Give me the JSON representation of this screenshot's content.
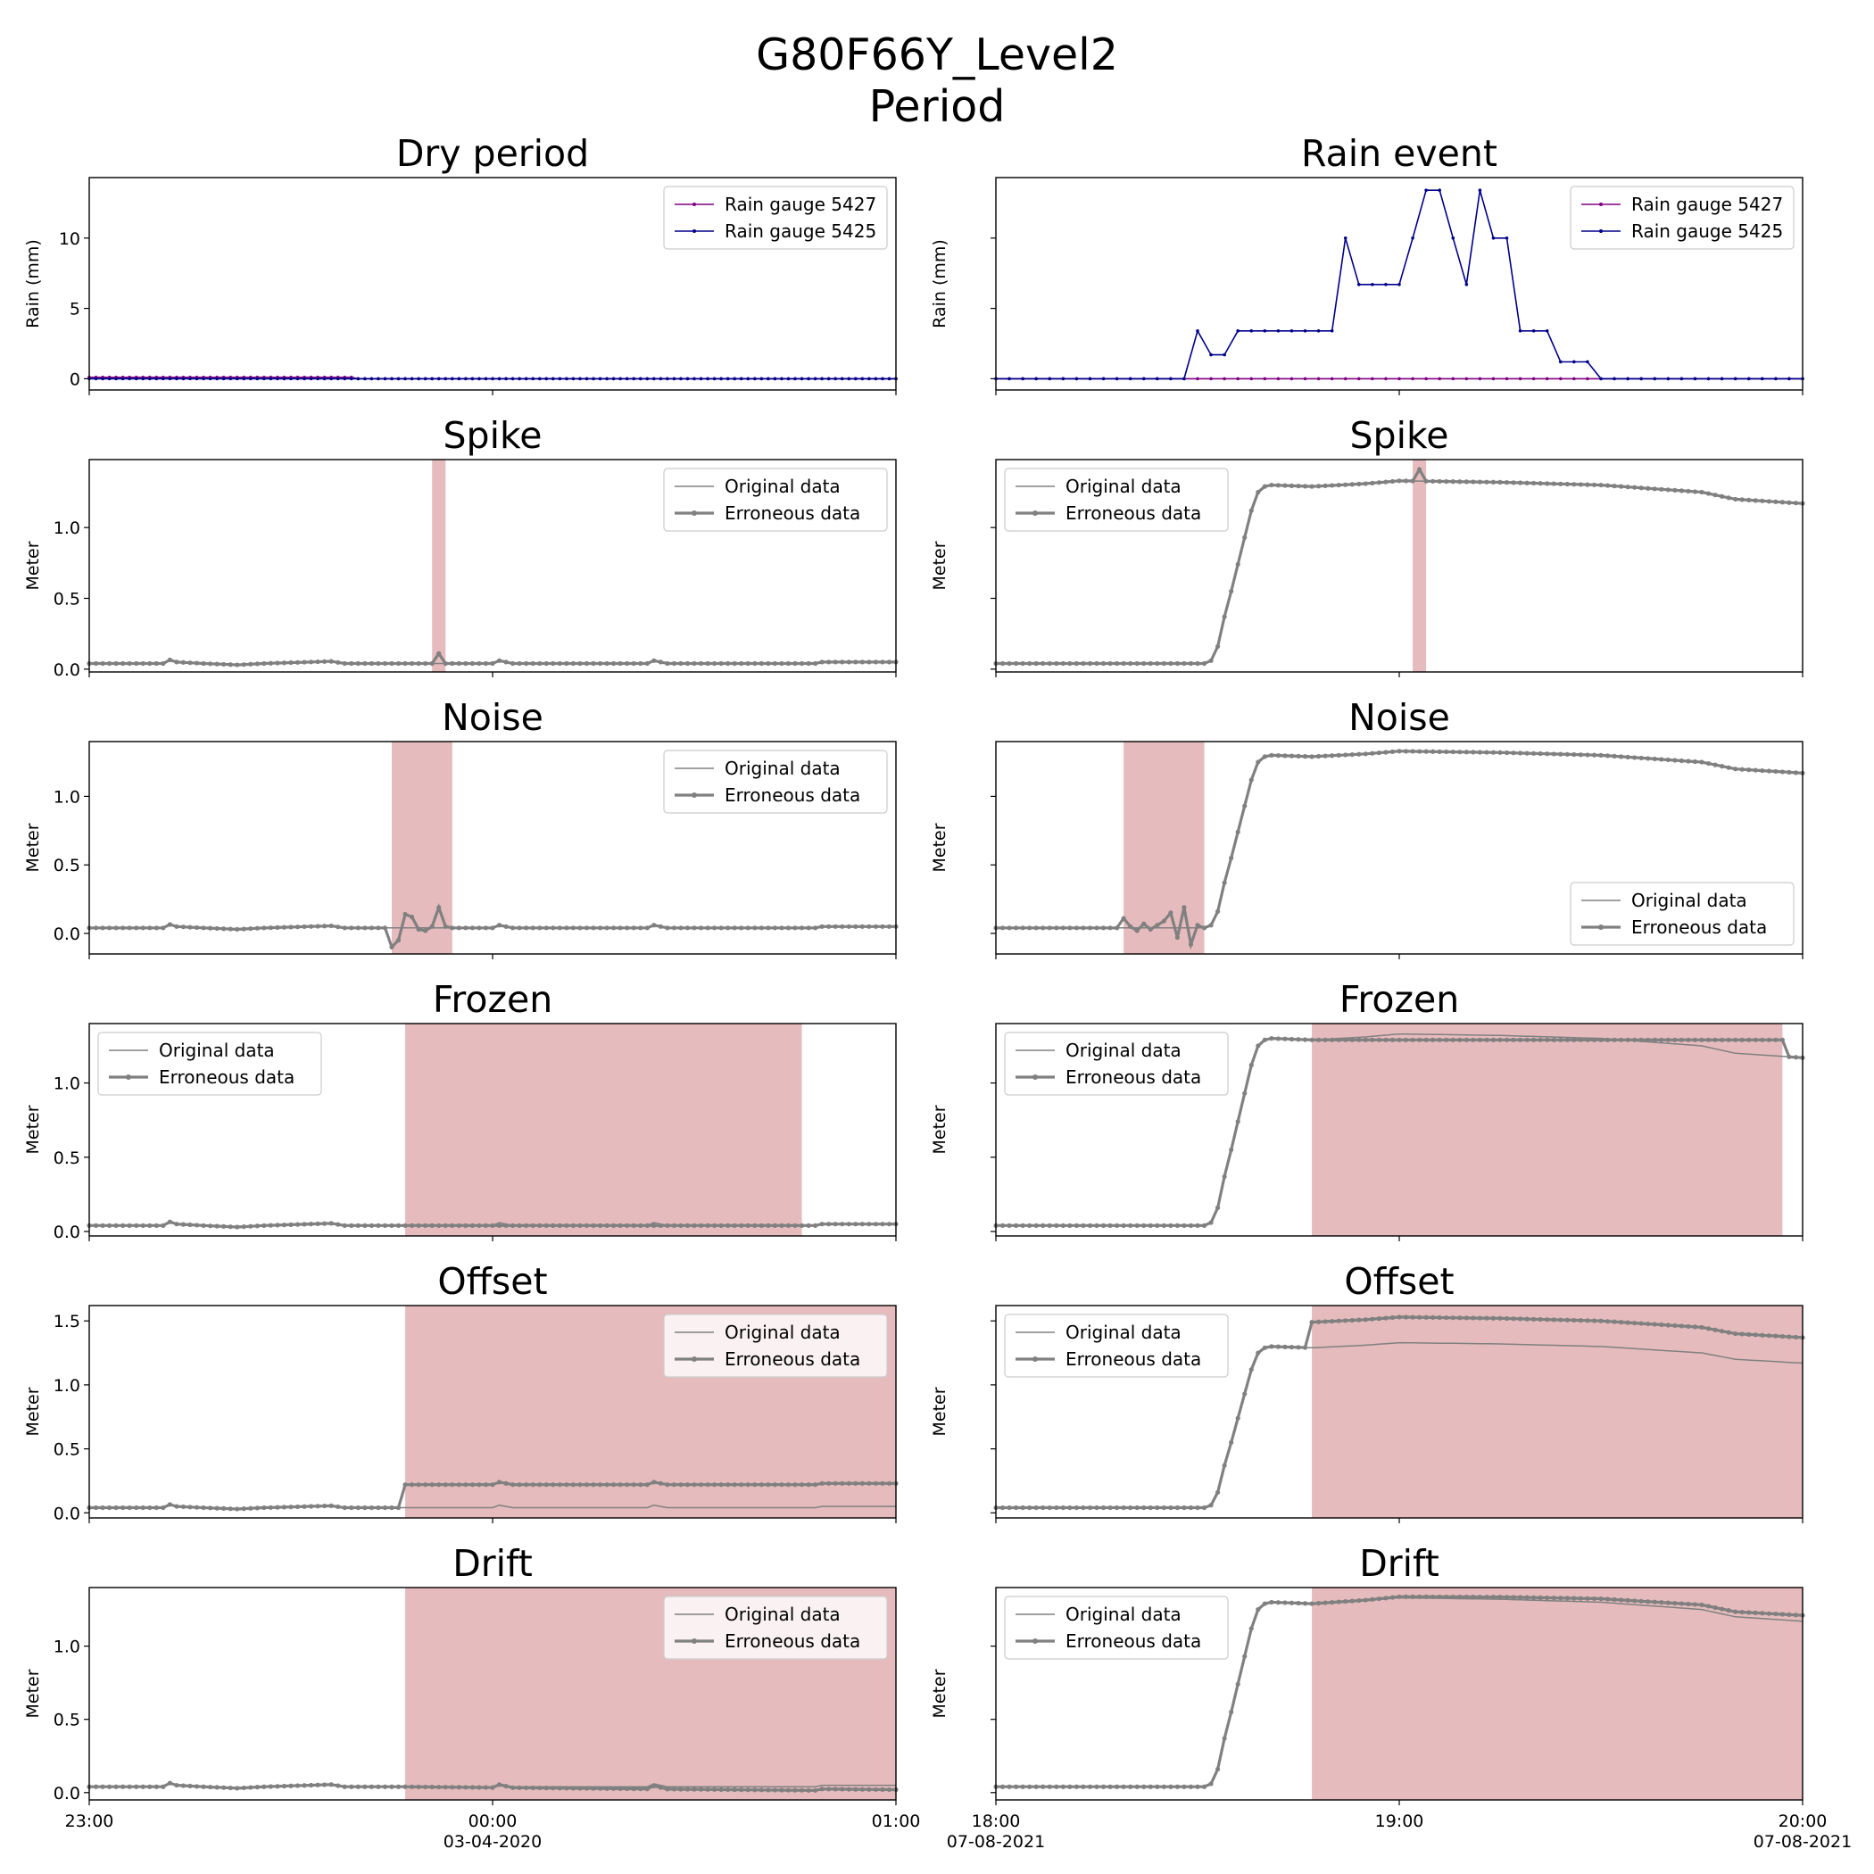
{
  "figure_title": "G80F66Y_Level2",
  "figure_subtitle": "Period",
  "colors": {
    "rain_5427": "#800080",
    "rain_5425": "#00008b",
    "data": "#808080",
    "error_span": "#e6bbbd"
  },
  "legend_labels": {
    "original": "Original data",
    "erroneous": "Erroneous data"
  },
  "chart_data": [
    {
      "id": "dry-rain",
      "type": "line",
      "title": "Dry period",
      "ylabel": "Rain (mm)",
      "ylim": [
        -0.8,
        14.3
      ],
      "yticks": [
        0,
        5,
        10
      ],
      "show_yticklabels": true,
      "x": {
        "start": "2020-04-02 23:00",
        "end": "2020-04-03 01:00",
        "step_minutes": 1
      },
      "series": [
        {
          "name": "Rain gauge 5427",
          "color": "#800080",
          "values": [
            {
              "from": "23:00",
              "to": "23:40",
              "value": 0.1
            },
            {
              "from": "23:40",
              "to": "01:00",
              "value": 0.0
            }
          ]
        },
        {
          "name": "Rain gauge 5425",
          "color": "#00008b",
          "values": [
            {
              "from": "23:00",
              "to": "01:00",
              "value": 0.0
            }
          ]
        }
      ],
      "legend": "upper right",
      "grid": false
    },
    {
      "id": "rain-rain",
      "type": "line",
      "title": "Rain event",
      "ylabel": "Rain (mm)",
      "ylim": [
        -0.8,
        14.3
      ],
      "yticks": [
        0,
        5,
        10
      ],
      "show_yticklabels": false,
      "x": {
        "start": "2021-08-07 18:00",
        "end": "2021-08-07 20:00",
        "step_minutes": 2
      },
      "series": [
        {
          "name": "Rain gauge 5427",
          "color": "#800080",
          "values": [
            0,
            0,
            0,
            0,
            0,
            0,
            0,
            0,
            0,
            0,
            0,
            0,
            0,
            0,
            0,
            0,
            0,
            0,
            0,
            0,
            0,
            0,
            0,
            0,
            0,
            0,
            0,
            0,
            0,
            0,
            0,
            0,
            0,
            0,
            0,
            0,
            0,
            0,
            0,
            0,
            0,
            0,
            0,
            0,
            0,
            0,
            0,
            0,
            0,
            0,
            0,
            0,
            0,
            0,
            0,
            0,
            0,
            0,
            0,
            0,
            0
          ]
        },
        {
          "name": "Rain gauge 5425",
          "color": "#00008b",
          "values": [
            0,
            0,
            0,
            0,
            0,
            0,
            0,
            0,
            0,
            0,
            0,
            0,
            0,
            0,
            0,
            3.4,
            1.7,
            1.7,
            3.4,
            3.4,
            3.4,
            3.4,
            3.4,
            3.4,
            3.4,
            3.4,
            10,
            6.7,
            6.7,
            6.7,
            6.7,
            10,
            13.4,
            13.4,
            10,
            6.7,
            13.4,
            10,
            10,
            3.4,
            3.4,
            3.4,
            1.2,
            1.2,
            1.2,
            0,
            0,
            0,
            0,
            0,
            0,
            0,
            0,
            0,
            0,
            0,
            0,
            0,
            0,
            0,
            0
          ]
        }
      ],
      "legend": "upper right",
      "grid": false
    },
    {
      "id": "dry-spike",
      "type": "line",
      "title": "Spike",
      "ylabel": "Meter",
      "ylim": [
        -0.02,
        1.48
      ],
      "yticks": [
        0.0,
        0.5,
        1.0
      ],
      "show_yticklabels": true,
      "x": {
        "start": "2020-04-02 23:00",
        "end": "2020-04-03 01:00",
        "step_minutes": 1
      },
      "base": "dry",
      "anomaly": {
        "type": "spike",
        "start": "23:51",
        "end": "23:53",
        "value": 0.11
      },
      "highlight": {
        "start": "23:51",
        "end": "23:53"
      },
      "legend": "upper right",
      "grid": false
    },
    {
      "id": "rain-spike",
      "type": "line",
      "title": "Spike",
      "ylabel": "Meter",
      "ylim": [
        -0.02,
        1.48
      ],
      "yticks": [
        0.0,
        0.5,
        1.0
      ],
      "show_yticklabels": false,
      "x": {
        "start": "2021-08-07 18:00",
        "end": "2021-08-07 20:00",
        "step_minutes": 1
      },
      "base": "rain",
      "anomaly": {
        "type": "spike",
        "start": "19:02",
        "end": "19:04",
        "value": 1.41
      },
      "highlight": {
        "start": "19:02",
        "end": "19:04"
      },
      "legend": "upper left",
      "grid": false
    },
    {
      "id": "dry-noise",
      "type": "line",
      "title": "Noise",
      "ylabel": "Meter",
      "ylim": [
        -0.15,
        1.4
      ],
      "yticks": [
        0.0,
        0.5,
        1.0
      ],
      "show_yticklabels": true,
      "x": {
        "start": "2020-04-02 23:00",
        "end": "2020-04-03 01:00",
        "step_minutes": 1
      },
      "base": "dry",
      "anomaly": {
        "type": "noise",
        "start": "23:45",
        "end": "23:54",
        "values": [
          -0.1,
          -0.05,
          0.14,
          0.12,
          0.03,
          0.02,
          0.05,
          0.19,
          0.05
        ]
      },
      "highlight": {
        "start": "23:45",
        "end": "23:54"
      },
      "legend": "upper right",
      "grid": false
    },
    {
      "id": "rain-noise",
      "type": "line",
      "title": "Noise",
      "ylabel": "Meter",
      "ylim": [
        -0.15,
        1.4
      ],
      "yticks": [
        0.0,
        0.5,
        1.0
      ],
      "show_yticklabels": false,
      "x": {
        "start": "2021-08-07 18:00",
        "end": "2021-08-07 20:00",
        "step_minutes": 1
      },
      "base": "rain",
      "anomaly": {
        "type": "noise",
        "start": "18:19",
        "end": "18:31",
        "values": [
          0.11,
          0.05,
          0.02,
          0.07,
          0.03,
          0.06,
          0.09,
          0.15,
          -0.03,
          0.19,
          -0.08,
          0.06
        ]
      },
      "highlight": {
        "start": "18:19",
        "end": "18:31"
      },
      "legend": "lower right",
      "grid": false
    },
    {
      "id": "dry-frozen",
      "type": "line",
      "title": "Frozen",
      "ylabel": "Meter",
      "ylim": [
        -0.03,
        1.4
      ],
      "yticks": [
        0.0,
        0.5,
        1.0
      ],
      "show_yticklabels": true,
      "x": {
        "start": "2020-04-02 23:00",
        "end": "2020-04-03 01:00",
        "step_minutes": 1
      },
      "base": "dry",
      "anomaly": {
        "type": "frozen",
        "start": "23:47",
        "end": "00:46"
      },
      "highlight": {
        "start": "23:47",
        "end": "00:46"
      },
      "legend": "upper left",
      "grid": false
    },
    {
      "id": "rain-frozen",
      "type": "line",
      "title": "Frozen",
      "ylabel": "Meter",
      "ylim": [
        -0.03,
        1.4
      ],
      "yticks": [
        0.0,
        0.5,
        1.0
      ],
      "show_yticklabels": false,
      "x": {
        "start": "2021-08-07 18:00",
        "end": "2021-08-07 20:00",
        "step_minutes": 1
      },
      "base": "rain",
      "anomaly": {
        "type": "frozen",
        "start": "18:47",
        "end": "19:57"
      },
      "highlight": {
        "start": "18:47",
        "end": "19:57"
      },
      "legend": "upper left",
      "grid": false
    },
    {
      "id": "dry-offset",
      "type": "line",
      "title": "Offset",
      "ylabel": "Meter",
      "ylim": [
        -0.04,
        1.62
      ],
      "yticks": [
        0.0,
        0.5,
        1.0,
        1.5
      ],
      "show_yticklabels": true,
      "x": {
        "start": "2020-04-02 23:00",
        "end": "2020-04-03 01:00",
        "step_minutes": 1
      },
      "base": "dry",
      "anomaly": {
        "type": "offset",
        "start": "23:47",
        "end": "01:00",
        "delta": 0.18
      },
      "highlight": {
        "start": "23:47",
        "end": "01:00"
      },
      "legend": "upper right",
      "grid": false
    },
    {
      "id": "rain-offset",
      "type": "line",
      "title": "Offset",
      "ylabel": "Meter",
      "ylim": [
        -0.04,
        1.62
      ],
      "yticks": [
        0.0,
        0.5,
        1.0,
        1.5
      ],
      "show_yticklabels": false,
      "x": {
        "start": "2021-08-07 18:00",
        "end": "2021-08-07 20:00",
        "step_minutes": 1
      },
      "base": "rain",
      "anomaly": {
        "type": "offset",
        "start": "18:47",
        "end": "20:00",
        "delta": 0.2
      },
      "highlight": {
        "start": "18:47",
        "end": "20:00"
      },
      "legend": "upper left",
      "grid": false
    },
    {
      "id": "dry-drift",
      "type": "line",
      "title": "Drift",
      "ylabel": "Meter",
      "ylim": [
        -0.05,
        1.4
      ],
      "yticks": [
        0.0,
        0.5,
        1.0
      ],
      "show_yticklabels": true,
      "x": {
        "start": "2020-04-02 23:00",
        "end": "2020-04-03 01:00",
        "step_minutes": 1
      },
      "base": "dry",
      "anomaly": {
        "type": "drift",
        "start": "23:47",
        "end": "01:00",
        "delta_end": -0.03
      },
      "highlight": {
        "start": "23:47",
        "end": "01:00"
      },
      "legend": "upper right",
      "grid": false
    },
    {
      "id": "rain-drift",
      "type": "line",
      "title": "Drift",
      "ylabel": "Meter",
      "ylim": [
        -0.05,
        1.4
      ],
      "yticks": [
        0.0,
        0.5,
        1.0
      ],
      "show_yticklabels": false,
      "x": {
        "start": "2021-08-07 18:00",
        "end": "2021-08-07 20:00",
        "step_minutes": 1
      },
      "base": "rain",
      "anomaly": {
        "type": "drift",
        "start": "18:47",
        "end": "20:00",
        "delta_end": 0.04
      },
      "highlight": {
        "start": "18:47",
        "end": "20:00"
      },
      "legend": "upper left",
      "grid": false
    }
  ],
  "water_level_profiles": {
    "dry": {
      "description_hidden": false,
      "points": [
        [
          "23:00",
          0.04
        ],
        [
          "23:11",
          0.04
        ],
        [
          "23:12",
          0.065
        ],
        [
          "23:13",
          0.05
        ],
        [
          "23:17",
          0.04
        ],
        [
          "23:22",
          0.03
        ],
        [
          "23:26",
          0.04
        ],
        [
          "23:36",
          0.055
        ],
        [
          "23:38",
          0.04
        ],
        [
          "23:51",
          0.04
        ],
        [
          "23:54",
          0.04
        ],
        [
          "00:00",
          0.04
        ],
        [
          "00:01",
          0.06
        ],
        [
          "00:03",
          0.04
        ],
        [
          "00:23",
          0.04
        ],
        [
          "00:24",
          0.06
        ],
        [
          "00:26",
          0.04
        ],
        [
          "00:48",
          0.04
        ],
        [
          "00:49",
          0.05
        ],
        [
          "01:00",
          0.05
        ]
      ]
    },
    "rain": {
      "points": [
        [
          "18:00",
          0.04
        ],
        [
          "18:31",
          0.04
        ],
        [
          "18:32",
          0.06
        ],
        [
          "18:33",
          0.16
        ],
        [
          "18:34",
          0.37
        ],
        [
          "18:35",
          0.55
        ],
        [
          "18:36",
          0.74
        ],
        [
          "18:37",
          0.93
        ],
        [
          "18:38",
          1.12
        ],
        [
          "18:39",
          1.25
        ],
        [
          "18:40",
          1.29
        ],
        [
          "18:41",
          1.3
        ],
        [
          "18:47",
          1.29
        ],
        [
          "18:55",
          1.31
        ],
        [
          "19:00",
          1.33
        ],
        [
          "19:15",
          1.32
        ],
        [
          "19:30",
          1.3
        ],
        [
          "19:45",
          1.25
        ],
        [
          "19:50",
          1.2
        ],
        [
          "20:00",
          1.17
        ]
      ]
    }
  },
  "x_axis": {
    "dry": {
      "ticks": [
        {
          "t": "23:00",
          "lines": [
            "23:00"
          ]
        },
        {
          "t": "00:00",
          "lines": [
            "00:00",
            "03-04-2020"
          ]
        },
        {
          "t": "01:00",
          "lines": [
            "01:00"
          ]
        }
      ]
    },
    "rain": {
      "ticks": [
        {
          "t": "18:00",
          "lines": [
            "18:00",
            "07-08-2021"
          ]
        },
        {
          "t": "19:00",
          "lines": [
            "19:00"
          ]
        },
        {
          "t": "20:00",
          "lines": [
            "20:00",
            "07-08-2021"
          ]
        }
      ]
    }
  }
}
